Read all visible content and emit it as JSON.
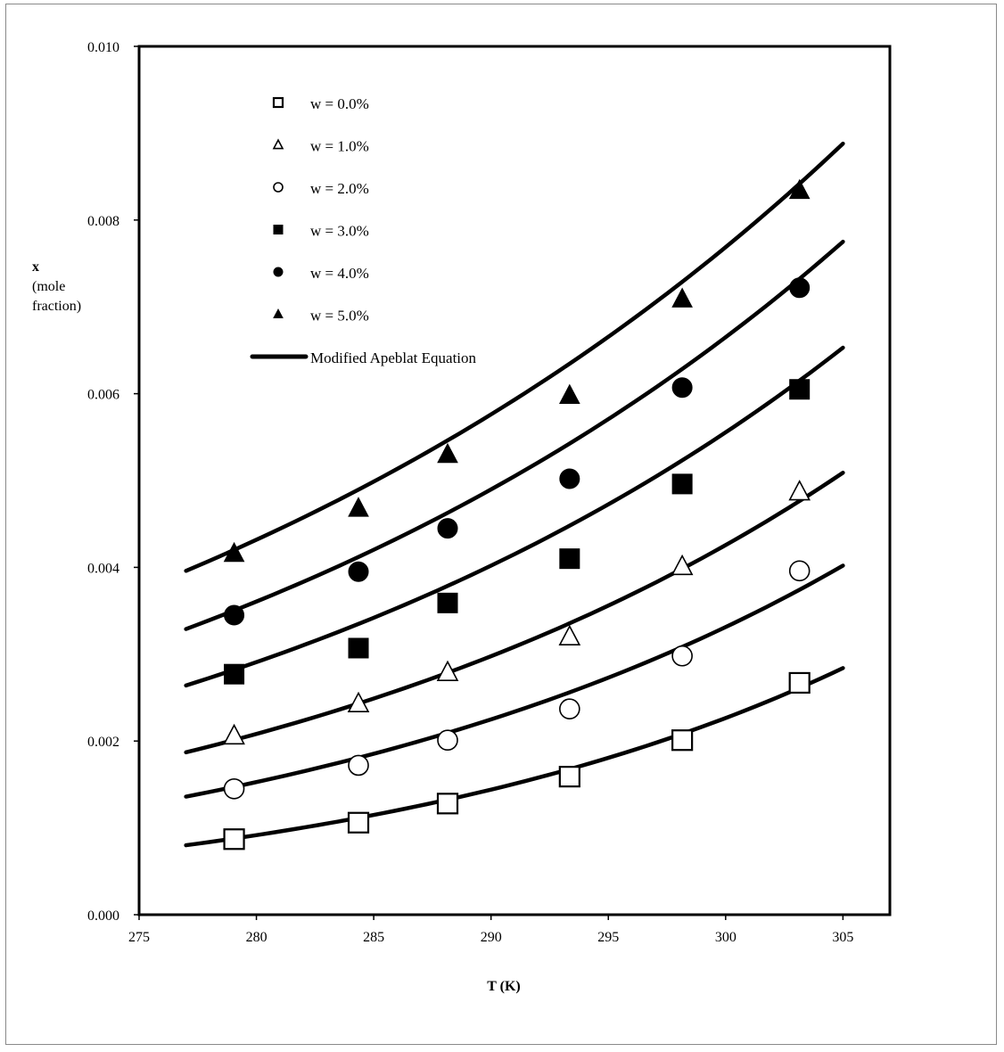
{
  "chart_data": {
    "type": "scatter",
    "title": "",
    "xlabel": "T (K)",
    "ylabel_lines": [
      "x",
      "(mole",
      "fraction)"
    ],
    "xlim": [
      275,
      307
    ],
    "ylim": [
      0.0,
      0.01
    ],
    "x_ticks": [
      275,
      280,
      285,
      290,
      295,
      300,
      305
    ],
    "x_tick_labels": [
      "275",
      "280",
      "285",
      "290",
      "295",
      "300",
      "305"
    ],
    "y_ticks": [
      0.0,
      0.002,
      0.004,
      0.006,
      0.008,
      0.01
    ],
    "y_tick_labels": [
      "0.000",
      "0.002",
      "0.004",
      "0.006",
      "0.008",
      "0.010"
    ],
    "grid": false,
    "legend_position": "top-left",
    "x": [
      279.05,
      284.35,
      288.15,
      293.35,
      298.15,
      303.15
    ],
    "series": [
      {
        "name": "w = 0.0%",
        "marker": "square-open",
        "values": [
          0.00087,
          0.00106,
          0.00128,
          0.00159,
          0.00201,
          0.00267
        ]
      },
      {
        "name": "w = 1.0%",
        "marker": "triangle-open",
        "values": [
          0.00206,
          0.00243,
          0.00279,
          0.0032,
          0.00401,
          0.00487
        ]
      },
      {
        "name": "w = 2.0%",
        "marker": "circle-open",
        "values": [
          0.00145,
          0.00172,
          0.00201,
          0.00237,
          0.00298,
          0.00396
        ]
      },
      {
        "name": "w = 3.0%",
        "marker": "square-filled",
        "values": [
          0.00277,
          0.00307,
          0.00359,
          0.0041,
          0.00496,
          0.00605
        ]
      },
      {
        "name": "w = 4.0%",
        "marker": "circle-filled",
        "values": [
          0.00345,
          0.00395,
          0.00445,
          0.00502,
          0.00607,
          0.00722
        ]
      },
      {
        "name": "w = 5.0%",
        "marker": "triangle-filled",
        "values": [
          0.00416,
          0.00468,
          0.0053,
          0.00598,
          0.00709,
          0.00834
        ]
      }
    ],
    "fit_lines": {
      "name": "Modified Apeblat Equation",
      "x_range": [
        277,
        305
      ],
      "curves": [
        {
          "at_277": 0.0008,
          "at_305": 0.00284
        },
        {
          "at_277": 0.00136,
          "at_305": 0.00402
        },
        {
          "at_277": 0.00187,
          "at_305": 0.00509
        },
        {
          "at_277": 0.00264,
          "at_305": 0.00653
        },
        {
          "at_277": 0.00329,
          "at_305": 0.00775
        },
        {
          "at_277": 0.00396,
          "at_305": 0.00888
        }
      ]
    }
  }
}
